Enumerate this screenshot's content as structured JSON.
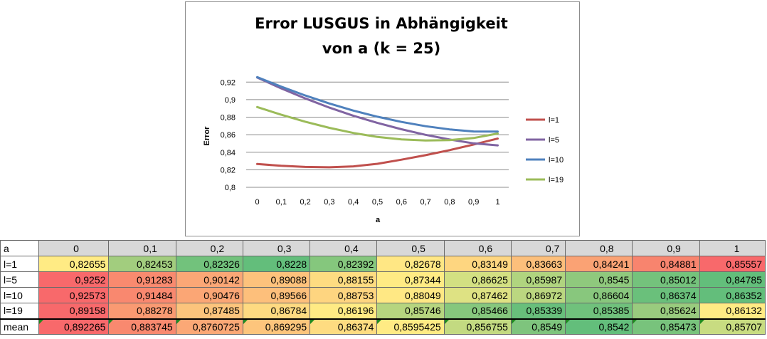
{
  "chart_data": {
    "type": "line",
    "title_lines": [
      "Error LUSGUS in Abhängigkeit",
      "von a (k = 25)"
    ],
    "xlabel": "a",
    "ylabel": "Error",
    "x": [
      "0",
      "0,1",
      "0,2",
      "0,3",
      "0,4",
      "0,5",
      "0,6",
      "0,7",
      "0,8",
      "0,9",
      "1"
    ],
    "ylim": [
      0.8,
      0.93
    ],
    "yticks": [
      0.8,
      0.82,
      0.84,
      0.86,
      0.88,
      0.9,
      0.92
    ],
    "ytick_labels": [
      "0,8",
      "0,82",
      "0,84",
      "0,86",
      "0,88",
      "0,9",
      "0,92"
    ],
    "grid": true,
    "legend": "right",
    "series": [
      {
        "name": "l=1",
        "color": "#c0504d",
        "values": [
          0.82655,
          0.82453,
          0.82326,
          0.8228,
          0.82392,
          0.82678,
          0.83149,
          0.83663,
          0.84241,
          0.84881,
          0.85557
        ]
      },
      {
        "name": "l=5",
        "color": "#8064a2",
        "values": [
          0.9252,
          0.91283,
          0.90142,
          0.89088,
          0.88155,
          0.87344,
          0.86625,
          0.85987,
          0.8545,
          0.85012,
          0.84785
        ]
      },
      {
        "name": "l=10",
        "color": "#4f81bd",
        "values": [
          0.92573,
          0.91484,
          0.90476,
          0.89566,
          0.88753,
          0.88049,
          0.87462,
          0.86972,
          0.86604,
          0.86374,
          0.86352
        ]
      },
      {
        "name": "l=19",
        "color": "#9bbb59",
        "values": [
          0.89158,
          0.88278,
          0.87485,
          0.86784,
          0.86196,
          0.85746,
          0.85466,
          0.85339,
          0.85385,
          0.85624,
          0.86132
        ]
      }
    ]
  },
  "table": {
    "corner": "a",
    "columns": [
      "0",
      "0,1",
      "0,2",
      "0,3",
      "0,4",
      "0,5",
      "0,6",
      "0,7",
      "0,8",
      "0,9",
      "1"
    ],
    "rows": [
      {
        "label": "l=1",
        "cells": [
          "0,82655",
          "0,82453",
          "0,82326",
          "0,8228",
          "0,82392",
          "0,82678",
          "0,83149",
          "0,83663",
          "0,84241",
          "0,84881",
          "0,85557"
        ],
        "colors": [
          "#ffeb84",
          "#a2cd7e",
          "#72c27c",
          "#63be7b",
          "#85c77d",
          "#ffe784",
          "#fed680",
          "#fcbf7b",
          "#faa274",
          "#f8846e",
          "#f8696b"
        ]
      },
      {
        "label": "l=5",
        "cells": [
          "0,9252",
          "0,91283",
          "0,90142",
          "0,89088",
          "0,88155",
          "0,87344",
          "0,86625",
          "0,85987",
          "0,8545",
          "0,85012",
          "0,84785"
        ],
        "colors": [
          "#f8696b",
          "#f98a6f",
          "#fba776",
          "#fdc27c",
          "#fedc81",
          "#ffeb84",
          "#d3e082",
          "#b0d47f",
          "#8fc97d",
          "#74c27c",
          "#63be7b"
        ]
      },
      {
        "label": "l=10",
        "cells": [
          "0,92573",
          "0,91484",
          "0,90476",
          "0,89566",
          "0,88753",
          "0,88049",
          "0,87462",
          "0,86972",
          "0,86604",
          "0,86374",
          "0,86352"
        ],
        "colors": [
          "#f8696b",
          "#f9886f",
          "#fba675",
          "#fdbf7b",
          "#fed580",
          "#ffe884",
          "#dee283",
          "#bbd780",
          "#88c77d",
          "#6ac07b",
          "#63be7b"
        ]
      },
      {
        "label": "l=19",
        "cells": [
          "0,89158",
          "0,88278",
          "0,87485",
          "0,86784",
          "0,86196",
          "0,85746",
          "0,85466",
          "0,85339",
          "0,85385",
          "0,85624",
          "0,86132"
        ],
        "colors": [
          "#f8696b",
          "#fa9a72",
          "#fcc47c",
          "#feda81",
          "#ffeb84",
          "#b6d57f",
          "#86c77d",
          "#68bf7b",
          "#70c17c",
          "#99cb7e",
          "#ffeb84"
        ]
      },
      {
        "label": "mean",
        "cells": [
          "0,892265",
          "0,883745",
          "0,8760725",
          "0,869295",
          "0,86374",
          "0,8595425",
          "0,856755",
          "0,8549",
          "0,8542",
          "0,85473",
          "0,85707"
        ],
        "colors": [
          "#f8696b",
          "#f9896f",
          "#fba876",
          "#fdc57c",
          "#fedc81",
          "#ffeb84",
          "#c3da81",
          "#7ec47d",
          "#63be7b",
          "#78c37c",
          "#c8dc81"
        ]
      }
    ]
  }
}
